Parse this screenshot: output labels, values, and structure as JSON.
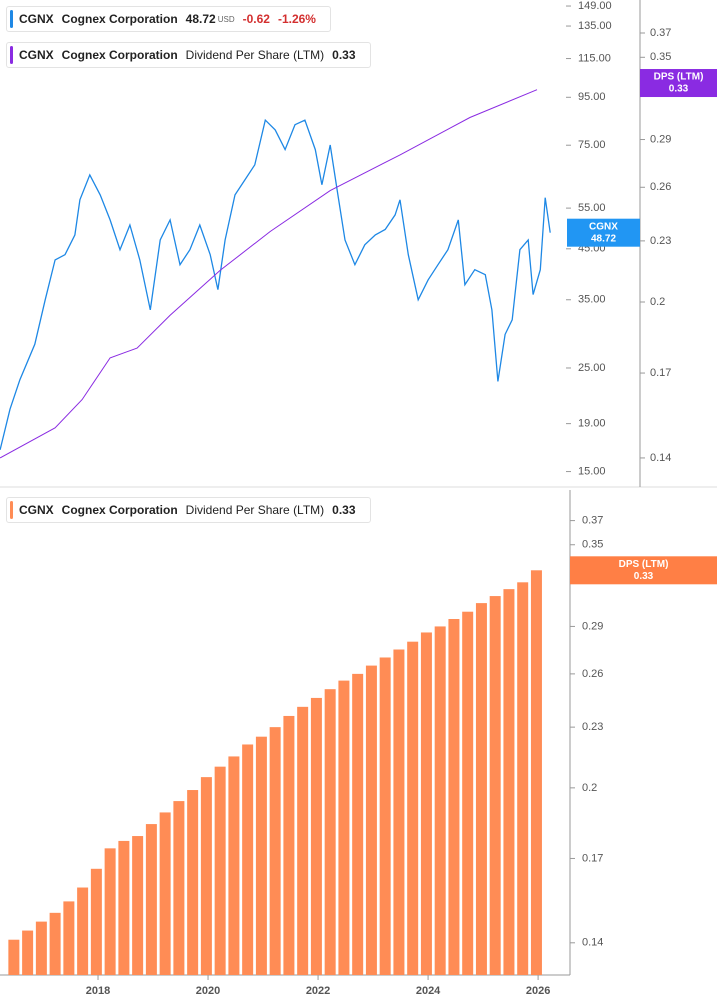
{
  "chart_data": [
    {
      "type": "line",
      "legend": [
        {
          "ticker": "CGNX",
          "company": "Cognex Corporation",
          "value": "48.72",
          "currency": "USD",
          "change": "-0.62",
          "change_pct": "-1.26%",
          "color": "#1e88e5"
        },
        {
          "ticker": "CGNX",
          "company": "Cognex Corporation",
          "metric": "Dividend Per Share (LTM)",
          "value": "0.33",
          "color": "#8a2be2"
        }
      ],
      "series": [
        {
          "name": "CGNX",
          "color": "#1e88e5",
          "x": [
            2016.22,
            2016.4,
            2016.58,
            2016.85,
            2017.04,
            2017.22,
            2017.4,
            2017.58,
            2017.67,
            2017.85,
            2018.04,
            2018.22,
            2018.4,
            2018.58,
            2018.76,
            2018.95,
            2019.13,
            2019.31,
            2019.49,
            2019.67,
            2019.85,
            2020.04,
            2020.18,
            2020.31,
            2020.49,
            2020.67,
            2020.85,
            2021.04,
            2021.22,
            2021.4,
            2021.58,
            2021.76,
            2021.95,
            2022.07,
            2022.22,
            2022.36,
            2022.49,
            2022.67,
            2022.85,
            2023.04,
            2023.22,
            2023.4,
            2023.49,
            2023.64,
            2023.82,
            2024.0,
            2024.18,
            2024.36,
            2024.55,
            2024.67,
            2024.85,
            2025.04,
            2025.16,
            2025.27,
            2025.4,
            2025.53,
            2025.67,
            2025.82,
            2025.91,
            2026.04,
            2026.13,
            2026.22
          ],
          "values": [
            16.7,
            20.4,
            23.6,
            28.1,
            35.0,
            42.6,
            43.7,
            48.2,
            57.3,
            64.8,
            58.7,
            51.9,
            44.8,
            50.6,
            42.6,
            33.3,
            47.0,
            51.9,
            41.6,
            44.8,
            50.6,
            43.7,
            36.8,
            47.0,
            58.7,
            63.2,
            68.1,
            84.9,
            80.9,
            73.4,
            83.0,
            84.9,
            73.4,
            61.7,
            75.1,
            58.7,
            47.0,
            41.6,
            45.9,
            48.2,
            49.5,
            53.2,
            57.3,
            43.7,
            35.0,
            38.6,
            41.6,
            44.8,
            51.9,
            37.7,
            40.6,
            39.6,
            33.3,
            23.4,
            29.5,
            31.7,
            44.8,
            47.0,
            35.9,
            40.6,
            57.9,
            48.72
          ]
        },
        {
          "name": "DPS (LTM)",
          "color": "#8a2be2",
          "axis": "y2",
          "x": [
            2016.22,
            2017.22,
            2017.71,
            2018.22,
            2018.71,
            2019.31,
            2020.22,
            2021.13,
            2022.22,
            2023.49,
            2024.76,
            2025.98
          ],
          "values": [
            0.14,
            0.15,
            0.16,
            0.176,
            0.18,
            0.194,
            0.215,
            0.235,
            0.258,
            0.28,
            0.305,
            0.325
          ]
        }
      ],
      "tags": [
        {
          "label": "CGNX",
          "value": 48.72,
          "color": "#2196f3"
        },
        {
          "label": "DPS (LTM)",
          "value": 0.33,
          "color": "#8a2be2",
          "axis": "y2"
        }
      ],
      "xlim": [
        2016.218,
        2026.58
      ],
      "ylog": true,
      "ylim": [
        13.9,
        153.5
      ],
      "yticks": [
        {
          "value": 149,
          "label": "149.00"
        },
        {
          "value": 135,
          "label": "135.00"
        },
        {
          "value": 115,
          "label": "115.00"
        },
        {
          "value": 95,
          "label": "95.00"
        },
        {
          "value": 75,
          "label": "75.00"
        },
        {
          "value": 55,
          "label": "55.00"
        },
        {
          "value": 45,
          "label": "45.00"
        },
        {
          "value": 35,
          "label": "35.00"
        },
        {
          "value": 25,
          "label": "25.00"
        },
        {
          "value": 19,
          "label": "19.00"
        },
        {
          "value": 15,
          "label": "15.00"
        }
      ],
      "y2lim": [
        0.131,
        0.399
      ],
      "y2ticks": [
        0.37,
        0.35,
        0.29,
        0.26,
        0.23,
        0.2,
        0.17,
        0.14
      ]
    },
    {
      "type": "bar",
      "legend": [
        {
          "ticker": "CGNX",
          "company": "Cognex Corporation",
          "metric": "Dividend Per Share (LTM)",
          "value": "0.33",
          "color": "#ff8c55"
        }
      ],
      "color": "#ff8c55",
      "x": [
        2016.47,
        2016.72,
        2016.97,
        2017.22,
        2017.47,
        2017.72,
        2017.97,
        2018.22,
        2018.47,
        2018.72,
        2018.97,
        2019.22,
        2019.47,
        2019.72,
        2019.97,
        2020.22,
        2020.47,
        2020.72,
        2020.97,
        2021.22,
        2021.47,
        2021.72,
        2021.97,
        2022.22,
        2022.47,
        2022.72,
        2022.97,
        2023.22,
        2023.47,
        2023.72,
        2023.97,
        2024.22,
        2024.47,
        2024.72,
        2024.97,
        2025.22,
        2025.47,
        2025.72,
        2025.97
      ],
      "values": [
        0.141,
        0.144,
        0.147,
        0.15,
        0.154,
        0.159,
        0.166,
        0.174,
        0.177,
        0.179,
        0.184,
        0.189,
        0.194,
        0.199,
        0.205,
        0.21,
        0.215,
        0.221,
        0.225,
        0.23,
        0.236,
        0.241,
        0.246,
        0.251,
        0.256,
        0.26,
        0.265,
        0.27,
        0.275,
        0.28,
        0.286,
        0.29,
        0.295,
        0.3,
        0.306,
        0.311,
        0.316,
        0.321,
        0.33
      ],
      "tags": [
        {
          "label": "DPS (LTM)",
          "value": 0.33,
          "color": "#ff7f45"
        }
      ],
      "xlim": [
        2016.218,
        2026.58
      ],
      "xticks": [
        2018,
        2020,
        2022,
        2024,
        2026
      ],
      "ylog": true,
      "ylim": [
        0.13,
        0.397
      ],
      "yticks": [
        0.37,
        0.35,
        0.29,
        0.26,
        0.23,
        0.2,
        0.17,
        0.14
      ]
    }
  ]
}
